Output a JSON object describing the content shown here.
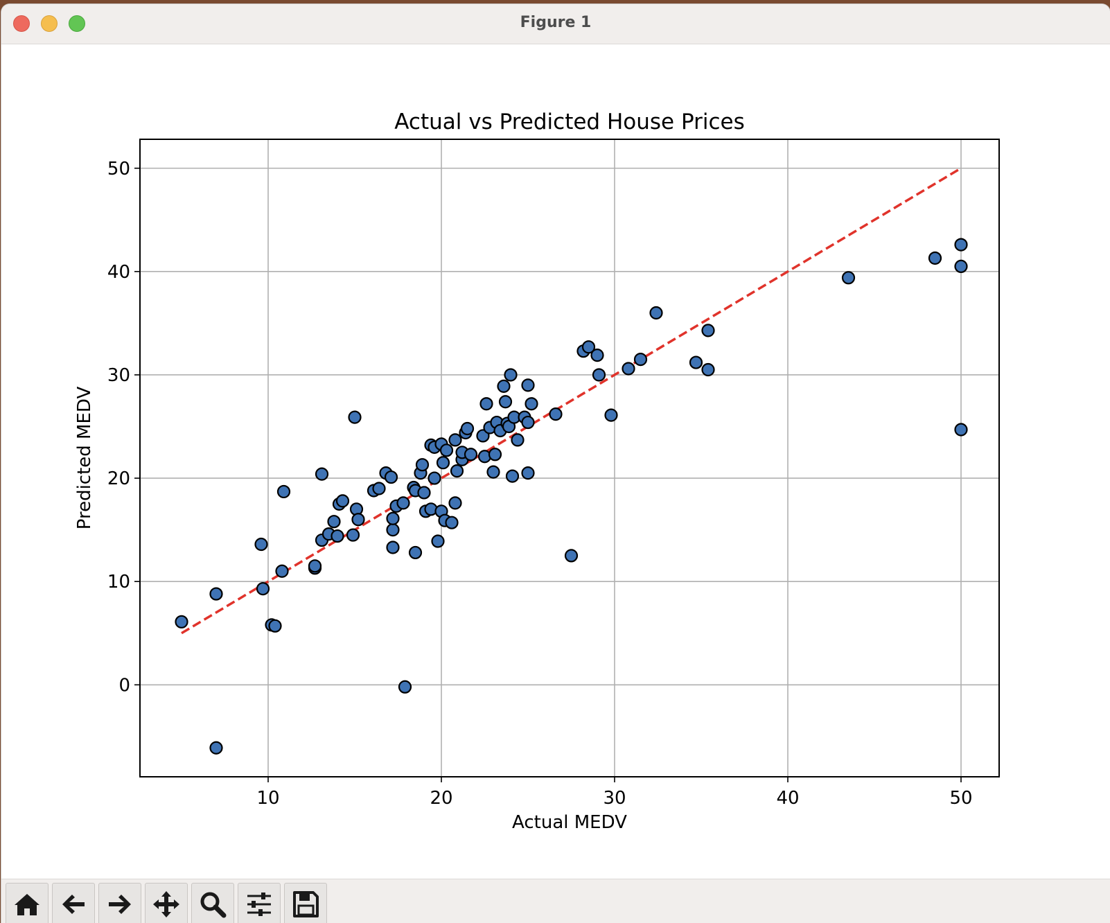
{
  "window": {
    "title": "Figure 1"
  },
  "toolbar": {
    "buttons": [
      {
        "name": "home",
        "icon": "home-icon"
      },
      {
        "name": "back",
        "icon": "arrow-left-icon"
      },
      {
        "name": "forward",
        "icon": "arrow-right-icon"
      },
      {
        "name": "pan",
        "icon": "move-icon"
      },
      {
        "name": "zoom",
        "icon": "magnifier-icon"
      },
      {
        "name": "configure",
        "icon": "sliders-icon"
      },
      {
        "name": "save",
        "icon": "floppy-icon"
      }
    ]
  },
  "colors": {
    "point_fill": "#3f73b4",
    "point_edge": "#000000",
    "ref_line": "#e0332b",
    "grid": "#b0b0b0"
  },
  "chart_data": {
    "type": "scatter",
    "title": "Actual vs Predicted House Prices",
    "xlabel": "Actual MEDV",
    "ylabel": "Predicted MEDV",
    "xlim": [
      2.6,
      52.2
    ],
    "ylim": [
      -8.9,
      52.8
    ],
    "xticks": [
      10,
      20,
      30,
      40,
      50
    ],
    "yticks": [
      0,
      10,
      20,
      30,
      40,
      50
    ],
    "grid": true,
    "reference_line": {
      "x": [
        5,
        50
      ],
      "y": [
        5,
        50
      ],
      "style": "dashed"
    },
    "points": [
      [
        5.0,
        6.1
      ],
      [
        7.0,
        8.8
      ],
      [
        7.0,
        -6.1
      ],
      [
        9.6,
        13.6
      ],
      [
        9.7,
        9.3
      ],
      [
        10.2,
        5.8
      ],
      [
        10.4,
        5.7
      ],
      [
        10.8,
        11.0
      ],
      [
        10.9,
        18.7
      ],
      [
        12.7,
        11.3
      ],
      [
        12.7,
        11.5
      ],
      [
        13.1,
        14.0
      ],
      [
        13.1,
        20.4
      ],
      [
        13.5,
        14.6
      ],
      [
        13.8,
        15.8
      ],
      [
        14.0,
        14.4
      ],
      [
        14.1,
        17.5
      ],
      [
        14.3,
        17.8
      ],
      [
        14.9,
        14.5
      ],
      [
        15.0,
        25.9
      ],
      [
        15.1,
        17.0
      ],
      [
        15.2,
        16.0
      ],
      [
        16.1,
        18.8
      ],
      [
        16.4,
        19.0
      ],
      [
        16.8,
        20.5
      ],
      [
        17.1,
        20.1
      ],
      [
        17.2,
        13.3
      ],
      [
        17.2,
        15.0
      ],
      [
        17.2,
        16.1
      ],
      [
        17.4,
        17.3
      ],
      [
        17.8,
        17.6
      ],
      [
        17.9,
        -0.2
      ],
      [
        18.4,
        19.1
      ],
      [
        18.5,
        18.8
      ],
      [
        18.5,
        12.8
      ],
      [
        18.8,
        20.5
      ],
      [
        18.9,
        21.3
      ],
      [
        19.0,
        18.6
      ],
      [
        19.1,
        16.8
      ],
      [
        19.4,
        23.2
      ],
      [
        19.4,
        17.0
      ],
      [
        19.6,
        20.0
      ],
      [
        19.6,
        23.0
      ],
      [
        19.8,
        13.9
      ],
      [
        20.0,
        23.3
      ],
      [
        20.0,
        16.8
      ],
      [
        20.1,
        21.5
      ],
      [
        20.2,
        15.9
      ],
      [
        20.3,
        22.7
      ],
      [
        20.6,
        15.7
      ],
      [
        20.8,
        17.6
      ],
      [
        20.8,
        23.7
      ],
      [
        20.9,
        20.7
      ],
      [
        21.2,
        21.8
      ],
      [
        21.2,
        22.5
      ],
      [
        21.4,
        24.4
      ],
      [
        21.5,
        24.8
      ],
      [
        21.7,
        22.3
      ],
      [
        22.4,
        24.1
      ],
      [
        22.5,
        22.1
      ],
      [
        22.6,
        27.2
      ],
      [
        22.8,
        24.9
      ],
      [
        23.0,
        20.6
      ],
      [
        23.1,
        22.3
      ],
      [
        23.2,
        25.4
      ],
      [
        23.4,
        24.6
      ],
      [
        23.6,
        28.9
      ],
      [
        23.7,
        27.4
      ],
      [
        23.8,
        25.3
      ],
      [
        23.9,
        25.0
      ],
      [
        24.0,
        30.0
      ],
      [
        24.1,
        20.2
      ],
      [
        24.2,
        25.9
      ],
      [
        24.4,
        23.7
      ],
      [
        24.8,
        25.9
      ],
      [
        25.0,
        25.4
      ],
      [
        25.0,
        29.0
      ],
      [
        25.0,
        20.5
      ],
      [
        25.2,
        27.2
      ],
      [
        26.6,
        26.2
      ],
      [
        27.5,
        12.5
      ],
      [
        28.2,
        32.3
      ],
      [
        28.5,
        32.7
      ],
      [
        29.0,
        31.9
      ],
      [
        29.1,
        30.0
      ],
      [
        29.8,
        26.1
      ],
      [
        30.8,
        30.6
      ],
      [
        31.5,
        31.5
      ],
      [
        32.4,
        36.0
      ],
      [
        34.7,
        31.2
      ],
      [
        35.4,
        34.3
      ],
      [
        35.4,
        30.5
      ],
      [
        43.5,
        39.4
      ],
      [
        48.5,
        41.3
      ],
      [
        50.0,
        42.6
      ],
      [
        50.0,
        40.5
      ],
      [
        50.0,
        24.7
      ]
    ]
  }
}
